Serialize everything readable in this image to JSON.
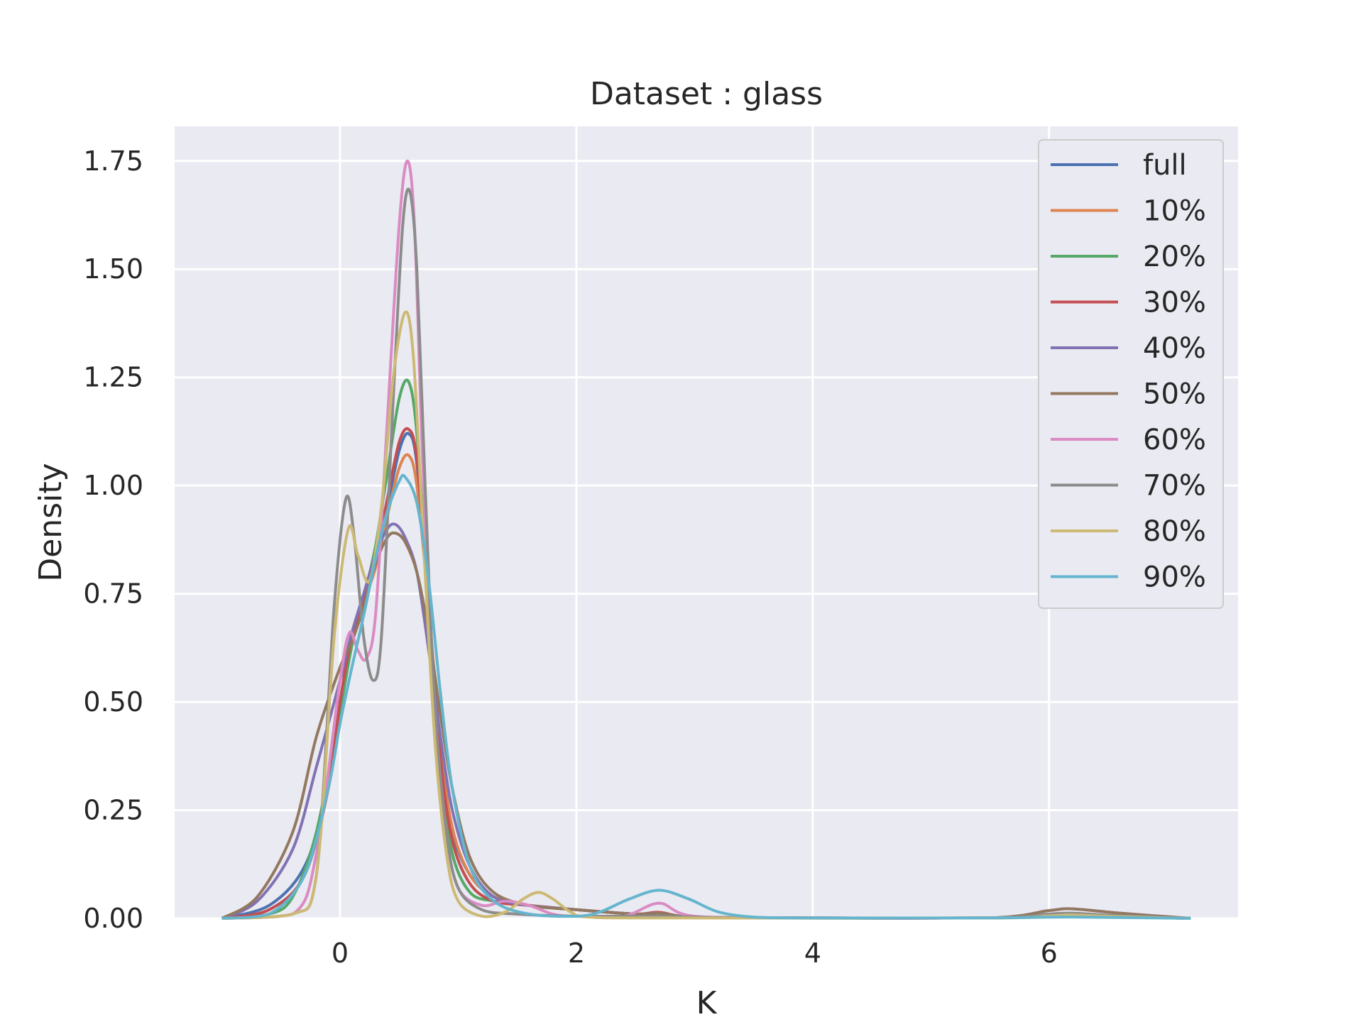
{
  "chart_data": {
    "type": "line",
    "title": "Dataset : glass",
    "xlabel": "K",
    "ylabel": "Density",
    "xlim": [
      -1.4,
      7.6
    ],
    "ylim": [
      0,
      1.83
    ],
    "xticks": [
      0,
      2,
      4,
      6
    ],
    "xtick_labels": [
      "0",
      "2",
      "4",
      "6"
    ],
    "yticks": [
      0,
      0.25,
      0.5,
      0.75,
      1.0,
      1.25,
      1.5,
      1.75
    ],
    "ytick_labels": [
      "0.00",
      "0.25",
      "0.50",
      "0.75",
      "1.00",
      "1.25",
      "1.50",
      "1.75"
    ],
    "grid": true,
    "legend_position": "top-right",
    "background": "#eaeaf2",
    "series": [
      {
        "name": "full",
        "color": "#4c72b0",
        "points": [
          [
            -1.0,
            0
          ],
          [
            -0.6,
            0.03
          ],
          [
            -0.3,
            0.12
          ],
          [
            -0.1,
            0.3
          ],
          [
            0.0,
            0.5
          ],
          [
            0.1,
            0.65
          ],
          [
            0.2,
            0.74
          ],
          [
            0.3,
            0.82
          ],
          [
            0.4,
            0.95
          ],
          [
            0.5,
            1.08
          ],
          [
            0.58,
            1.12
          ],
          [
            0.65,
            1.05
          ],
          [
            0.75,
            0.72
          ],
          [
            0.85,
            0.38
          ],
          [
            0.95,
            0.2
          ],
          [
            1.1,
            0.1
          ],
          [
            1.3,
            0.05
          ],
          [
            1.6,
            0.03
          ],
          [
            2.0,
            0.02
          ],
          [
            2.5,
            0.01
          ],
          [
            2.7,
            0.012
          ],
          [
            3.0,
            0.003
          ],
          [
            4.0,
            0.001
          ],
          [
            5.5,
            0.001
          ],
          [
            6.0,
            0.006
          ],
          [
            6.2,
            0.008
          ],
          [
            6.6,
            0.004
          ],
          [
            7.2,
            0
          ]
        ]
      },
      {
        "name": "10%",
        "color": "#dd8452",
        "points": [
          [
            -1.0,
            0
          ],
          [
            -0.6,
            0.02
          ],
          [
            -0.3,
            0.1
          ],
          [
            -0.1,
            0.3
          ],
          [
            0.0,
            0.5
          ],
          [
            0.1,
            0.64
          ],
          [
            0.2,
            0.73
          ],
          [
            0.3,
            0.81
          ],
          [
            0.4,
            0.93
          ],
          [
            0.5,
            1.04
          ],
          [
            0.58,
            1.07
          ],
          [
            0.65,
            1.0
          ],
          [
            0.75,
            0.72
          ],
          [
            0.85,
            0.4
          ],
          [
            0.95,
            0.21
          ],
          [
            1.1,
            0.1
          ],
          [
            1.3,
            0.05
          ],
          [
            1.6,
            0.03
          ],
          [
            2.0,
            0.02
          ],
          [
            2.5,
            0.01
          ],
          [
            2.7,
            0.012
          ],
          [
            3.0,
            0.003
          ],
          [
            4.0,
            0.001
          ],
          [
            5.5,
            0.001
          ],
          [
            6.0,
            0.006
          ],
          [
            6.2,
            0.008
          ],
          [
            6.6,
            0.004
          ],
          [
            7.2,
            0
          ]
        ]
      },
      {
        "name": "20%",
        "color": "#55a868",
        "points": [
          [
            -1.0,
            0
          ],
          [
            -0.6,
            0.01
          ],
          [
            -0.4,
            0.05
          ],
          [
            -0.2,
            0.2
          ],
          [
            0.0,
            0.48
          ],
          [
            0.1,
            0.63
          ],
          [
            0.2,
            0.74
          ],
          [
            0.3,
            0.86
          ],
          [
            0.4,
            1.03
          ],
          [
            0.5,
            1.2
          ],
          [
            0.58,
            1.24
          ],
          [
            0.65,
            1.12
          ],
          [
            0.75,
            0.72
          ],
          [
            0.85,
            0.35
          ],
          [
            0.95,
            0.15
          ],
          [
            1.1,
            0.06
          ],
          [
            1.3,
            0.04
          ],
          [
            1.6,
            0.03
          ],
          [
            2.0,
            0.02
          ],
          [
            2.5,
            0.01
          ],
          [
            2.7,
            0.012
          ],
          [
            3.0,
            0.003
          ],
          [
            4.0,
            0.001
          ],
          [
            5.5,
            0.001
          ],
          [
            6.0,
            0.006
          ],
          [
            6.2,
            0.008
          ],
          [
            6.6,
            0.004
          ],
          [
            7.2,
            0
          ]
        ]
      },
      {
        "name": "30%",
        "color": "#c44e52",
        "points": [
          [
            -1.0,
            0
          ],
          [
            -0.6,
            0.02
          ],
          [
            -0.3,
            0.1
          ],
          [
            -0.1,
            0.3
          ],
          [
            0.0,
            0.5
          ],
          [
            0.1,
            0.65
          ],
          [
            0.2,
            0.74
          ],
          [
            0.3,
            0.83
          ],
          [
            0.4,
            0.97
          ],
          [
            0.5,
            1.1
          ],
          [
            0.58,
            1.13
          ],
          [
            0.65,
            1.06
          ],
          [
            0.75,
            0.72
          ],
          [
            0.85,
            0.37
          ],
          [
            0.95,
            0.18
          ],
          [
            1.1,
            0.08
          ],
          [
            1.3,
            0.04
          ],
          [
            1.6,
            0.03
          ],
          [
            2.0,
            0.02
          ],
          [
            2.5,
            0.01
          ],
          [
            2.7,
            0.014
          ],
          [
            3.0,
            0.003
          ],
          [
            4.0,
            0.001
          ],
          [
            5.5,
            0.001
          ],
          [
            6.0,
            0.008
          ],
          [
            6.2,
            0.01
          ],
          [
            6.6,
            0.005
          ],
          [
            7.2,
            0
          ]
        ]
      },
      {
        "name": "40%",
        "color": "#8172b3",
        "points": [
          [
            -1.0,
            0
          ],
          [
            -0.7,
            0.04
          ],
          [
            -0.4,
            0.16
          ],
          [
            -0.2,
            0.35
          ],
          [
            0.0,
            0.55
          ],
          [
            0.1,
            0.66
          ],
          [
            0.2,
            0.75
          ],
          [
            0.3,
            0.84
          ],
          [
            0.4,
            0.9
          ],
          [
            0.47,
            0.91
          ],
          [
            0.55,
            0.88
          ],
          [
            0.65,
            0.8
          ],
          [
            0.75,
            0.62
          ],
          [
            0.85,
            0.42
          ],
          [
            0.95,
            0.25
          ],
          [
            1.1,
            0.12
          ],
          [
            1.3,
            0.05
          ],
          [
            1.6,
            0.03
          ],
          [
            2.0,
            0.02
          ],
          [
            2.5,
            0.01
          ],
          [
            2.7,
            0.012
          ],
          [
            3.0,
            0.003
          ],
          [
            4.0,
            0.001
          ],
          [
            5.5,
            0.001
          ],
          [
            6.0,
            0.018
          ],
          [
            6.2,
            0.022
          ],
          [
            6.6,
            0.012
          ],
          [
            7.2,
            0
          ]
        ]
      },
      {
        "name": "50%",
        "color": "#937860",
        "points": [
          [
            -1.0,
            0
          ],
          [
            -0.7,
            0.05
          ],
          [
            -0.4,
            0.2
          ],
          [
            -0.2,
            0.42
          ],
          [
            0.0,
            0.58
          ],
          [
            0.1,
            0.64
          ],
          [
            0.2,
            0.72
          ],
          [
            0.3,
            0.82
          ],
          [
            0.4,
            0.88
          ],
          [
            0.47,
            0.89
          ],
          [
            0.55,
            0.87
          ],
          [
            0.65,
            0.8
          ],
          [
            0.75,
            0.66
          ],
          [
            0.85,
            0.47
          ],
          [
            0.95,
            0.3
          ],
          [
            1.1,
            0.14
          ],
          [
            1.3,
            0.06
          ],
          [
            1.6,
            0.03
          ],
          [
            2.0,
            0.02
          ],
          [
            2.5,
            0.01
          ],
          [
            2.7,
            0.012
          ],
          [
            3.0,
            0.003
          ],
          [
            4.0,
            0.001
          ],
          [
            5.5,
            0.001
          ],
          [
            6.0,
            0.018
          ],
          [
            6.2,
            0.022
          ],
          [
            6.6,
            0.012
          ],
          [
            7.2,
            0
          ]
        ]
      },
      {
        "name": "60%",
        "color": "#da8bc3",
        "points": [
          [
            -1.0,
            0
          ],
          [
            -0.4,
            0.01
          ],
          [
            -0.2,
            0.15
          ],
          [
            0.0,
            0.55
          ],
          [
            0.08,
            0.66
          ],
          [
            0.15,
            0.62
          ],
          [
            0.22,
            0.6
          ],
          [
            0.3,
            0.7
          ],
          [
            0.4,
            1.15
          ],
          [
            0.5,
            1.6
          ],
          [
            0.57,
            1.75
          ],
          [
            0.63,
            1.6
          ],
          [
            0.7,
            1.05
          ],
          [
            0.8,
            0.5
          ],
          [
            0.9,
            0.2
          ],
          [
            1.0,
            0.07
          ],
          [
            1.2,
            0.03
          ],
          [
            1.4,
            0.04
          ],
          [
            1.6,
            0.03
          ],
          [
            1.8,
            0.01
          ],
          [
            2.0,
            0.005
          ],
          [
            2.4,
            0.005
          ],
          [
            2.7,
            0.035
          ],
          [
            3.0,
            0.005
          ],
          [
            4.0,
            0.001
          ],
          [
            5.5,
            0.001
          ],
          [
            6.0,
            0.006
          ],
          [
            6.2,
            0.008
          ],
          [
            6.6,
            0.004
          ],
          [
            7.2,
            0
          ]
        ]
      },
      {
        "name": "70%",
        "color": "#8c8c8c",
        "points": [
          [
            -1.0,
            0
          ],
          [
            -0.4,
            0.01
          ],
          [
            -0.2,
            0.1
          ],
          [
            -0.05,
            0.72
          ],
          [
            0.05,
            0.97
          ],
          [
            0.12,
            0.88
          ],
          [
            0.2,
            0.65
          ],
          [
            0.28,
            0.55
          ],
          [
            0.35,
            0.65
          ],
          [
            0.45,
            1.2
          ],
          [
            0.53,
            1.6
          ],
          [
            0.59,
            1.68
          ],
          [
            0.65,
            1.5
          ],
          [
            0.72,
            1.0
          ],
          [
            0.8,
            0.5
          ],
          [
            0.9,
            0.2
          ],
          [
            1.0,
            0.07
          ],
          [
            1.2,
            0.02
          ],
          [
            1.5,
            0.01
          ],
          [
            2.0,
            0.005
          ],
          [
            2.7,
            0.005
          ],
          [
            3.5,
            0.001
          ],
          [
            5.5,
            0.001
          ],
          [
            6.0,
            0.01
          ],
          [
            6.2,
            0.012
          ],
          [
            6.6,
            0.006
          ],
          [
            7.2,
            0
          ]
        ]
      },
      {
        "name": "80%",
        "color": "#ccb974",
        "points": [
          [
            -1.0,
            0
          ],
          [
            -0.4,
            0.01
          ],
          [
            -0.2,
            0.1
          ],
          [
            -0.05,
            0.65
          ],
          [
            0.07,
            0.9
          ],
          [
            0.15,
            0.84
          ],
          [
            0.25,
            0.78
          ],
          [
            0.35,
            0.95
          ],
          [
            0.45,
            1.25
          ],
          [
            0.55,
            1.4
          ],
          [
            0.62,
            1.3
          ],
          [
            0.7,
            0.9
          ],
          [
            0.8,
            0.42
          ],
          [
            0.9,
            0.15
          ],
          [
            1.0,
            0.04
          ],
          [
            1.2,
            0.005
          ],
          [
            1.4,
            0.015
          ],
          [
            1.55,
            0.045
          ],
          [
            1.68,
            0.06
          ],
          [
            1.8,
            0.045
          ],
          [
            1.95,
            0.015
          ],
          [
            2.1,
            0.003
          ],
          [
            2.7,
            0.001
          ],
          [
            5.5,
            0.001
          ],
          [
            6.0,
            0.006
          ],
          [
            6.2,
            0.008
          ],
          [
            6.6,
            0.004
          ],
          [
            7.2,
            0
          ]
        ]
      },
      {
        "name": "90%",
        "color": "#64b5cd",
        "points": [
          [
            -1.0,
            0
          ],
          [
            -0.6,
            0.01
          ],
          [
            -0.3,
            0.1
          ],
          [
            -0.1,
            0.3
          ],
          [
            0.0,
            0.45
          ],
          [
            0.1,
            0.58
          ],
          [
            0.2,
            0.7
          ],
          [
            0.3,
            0.83
          ],
          [
            0.4,
            0.94
          ],
          [
            0.5,
            1.01
          ],
          [
            0.55,
            1.02
          ],
          [
            0.65,
            0.96
          ],
          [
            0.75,
            0.78
          ],
          [
            0.85,
            0.52
          ],
          [
            0.95,
            0.3
          ],
          [
            1.1,
            0.12
          ],
          [
            1.3,
            0.04
          ],
          [
            1.6,
            0.01
          ],
          [
            2.0,
            0.005
          ],
          [
            2.2,
            0.015
          ],
          [
            2.45,
            0.045
          ],
          [
            2.7,
            0.065
          ],
          [
            2.95,
            0.045
          ],
          [
            3.2,
            0.015
          ],
          [
            3.5,
            0.003
          ],
          [
            4.0,
            0.001
          ],
          [
            5.5,
            0.001
          ],
          [
            6.2,
            0.003
          ],
          [
            7.2,
            0
          ]
        ]
      }
    ]
  }
}
